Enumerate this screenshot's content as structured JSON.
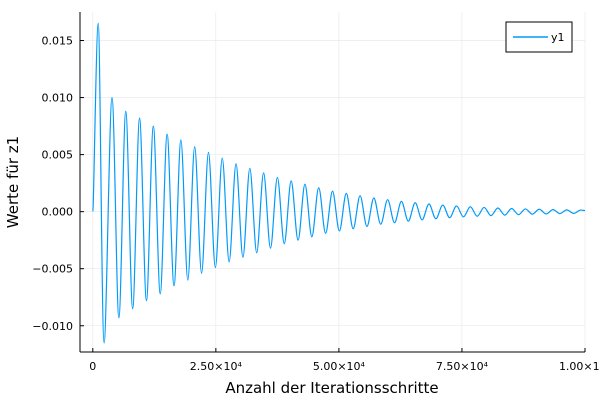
{
  "chart_data": {
    "type": "line",
    "title": "",
    "xlabel": "Anzahl der Iterationsschritte",
    "ylabel": "Werte für z1",
    "xlim": [
      -2600,
      100000
    ],
    "ylim": [
      -0.0123,
      0.0175
    ],
    "grid": true,
    "legend_position": "top-right",
    "x_ticks": [
      {
        "value": 0,
        "label": "0"
      },
      {
        "value": 25000,
        "label": "2.50×10⁴"
      },
      {
        "value": 50000,
        "label": "5.00×10⁴"
      },
      {
        "value": 75000,
        "label": "7.50×10⁴"
      },
      {
        "value": 100000,
        "label": "1.00×10⁵"
      }
    ],
    "y_ticks": [
      {
        "value": -0.01,
        "label": "−0.010"
      },
      {
        "value": -0.005,
        "label": "−0.005"
      },
      {
        "value": 0,
        "label": "0.000"
      },
      {
        "value": 0.005,
        "label": "0.005"
      },
      {
        "value": 0.01,
        "label": "0.010"
      },
      {
        "value": 0.015,
        "label": "0.015"
      }
    ],
    "series": [
      {
        "name": "y1",
        "color": "#009AFA",
        "x": [
          0,
          1100,
          2300,
          3900,
          5300,
          6700,
          8100,
          9500,
          10900,
          12300,
          13700,
          15100,
          16500,
          17900,
          19300,
          20700,
          22100,
          23500,
          24900,
          26300,
          27700,
          29100,
          30500,
          31900,
          33300,
          34700,
          36100,
          37500,
          38900,
          40300,
          41700,
          43100,
          44500,
          45900,
          47300,
          48700,
          50100,
          51500,
          52900,
          54300,
          55700,
          57100,
          58500,
          59900,
          61300,
          62700,
          64100,
          65500,
          66900,
          68300,
          69700,
          71100,
          72500,
          73900,
          75300,
          76700,
          78100,
          79500,
          80900,
          82300,
          83700,
          85100,
          86500,
          87900,
          89300,
          90700,
          92100,
          93500,
          94900,
          96300,
          97700,
          99100,
          100000
        ],
        "y": [
          0,
          0.0165,
          -0.0115,
          0.01,
          -0.0093,
          0.0088,
          -0.0085,
          0.0082,
          -0.0078,
          0.0075,
          -0.0072,
          0.0068,
          -0.0065,
          0.0063,
          -0.006,
          0.0057,
          -0.0054,
          0.0052,
          -0.0049,
          0.0047,
          -0.0044,
          0.0042,
          -0.004,
          0.0038,
          -0.0036,
          0.0034,
          -0.0032,
          0.003,
          -0.0028,
          0.0027,
          -0.0025,
          0.0024,
          -0.0022,
          0.0021,
          -0.0019,
          0.0018,
          -0.0017,
          0.0016,
          -0.0015,
          0.0014,
          -0.0013,
          0.0012,
          -0.0011,
          0.00105,
          -0.00097,
          0.0009,
          -0.00083,
          0.00078,
          -0.00072,
          0.00067,
          -0.00062,
          0.00058,
          -0.00053,
          0.0005,
          -0.00046,
          0.00043,
          -0.0004,
          0.00037,
          -0.00035,
          0.00032,
          -0.0003,
          0.00028,
          -0.00026,
          0.00024,
          -0.00022,
          0.00021,
          -0.0002,
          0.00018,
          -0.00017,
          0.00016,
          -0.00015,
          0.00014,
          0.0001
        ]
      }
    ]
  }
}
